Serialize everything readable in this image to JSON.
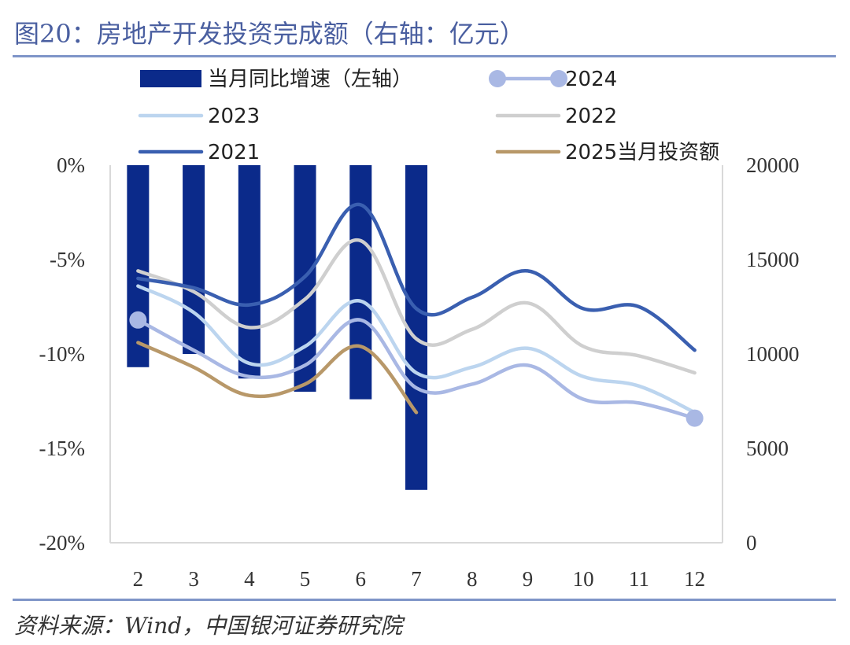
{
  "header": {
    "title": "图20：房地产开发投资完成额（右轴：亿元）"
  },
  "footer": {
    "source": "资料来源：Wind，中国银河证券研究院"
  },
  "chart_data": {
    "type": "bar+line",
    "categories": [
      "2",
      "3",
      "4",
      "5",
      "6",
      "7",
      "8",
      "9",
      "10",
      "11",
      "12"
    ],
    "left_axis": {
      "ylim": [
        -20,
        0
      ],
      "ticks": [
        "0%",
        "-5%",
        "-10%",
        "-15%",
        "-20%"
      ]
    },
    "right_axis": {
      "ylim": [
        0,
        20000
      ],
      "ticks": [
        "20000",
        "15000",
        "10000",
        "5000",
        "0"
      ]
    },
    "bars": {
      "name": "当月同比增速（左轴）",
      "color": "#0b2a8a",
      "values": [
        -10.7,
        -10.0,
        -11.3,
        -12.0,
        -12.4,
        -17.2,
        null,
        null,
        null,
        null,
        null
      ]
    },
    "series": [
      {
        "name": "2024",
        "color": "#a9b8e4",
        "markers": true,
        "values": [
          11800,
          10200,
          8800,
          9400,
          11800,
          8200,
          8400,
          9400,
          7600,
          7400,
          6600
        ]
      },
      {
        "name": "2023",
        "color": "#bcd5ef",
        "values": [
          13600,
          12200,
          9500,
          10400,
          12800,
          9000,
          9300,
          10300,
          8800,
          8300,
          6900
        ]
      },
      {
        "name": "2022",
        "color": "#cfcfcf",
        "values": [
          14400,
          13300,
          11400,
          12900,
          16000,
          10800,
          11300,
          12700,
          10400,
          9900,
          9000
        ]
      },
      {
        "name": "2021",
        "color": "#3a5fb0",
        "values": [
          14000,
          13500,
          12600,
          14100,
          17900,
          12400,
          13000,
          14400,
          12400,
          12500,
          10200
        ]
      },
      {
        "name": "2025当月投资额",
        "color": "#b89869",
        "values": [
          10600,
          9300,
          7800,
          8400,
          10400,
          6900,
          null,
          null,
          null,
          null,
          null
        ]
      }
    ]
  }
}
